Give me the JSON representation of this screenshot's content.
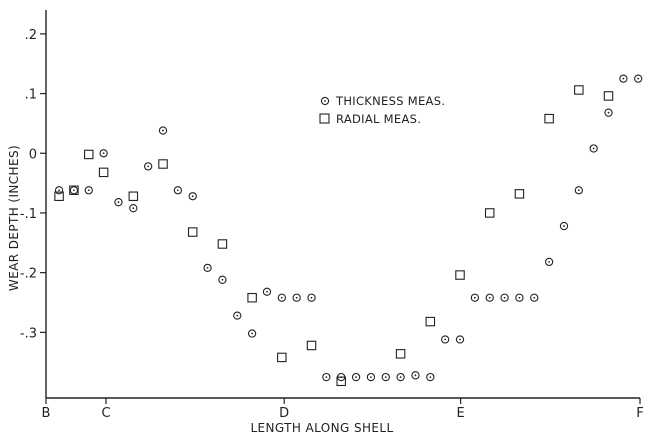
{
  "chart_data": {
    "type": "scatter",
    "xlabel": "LENGTH ALONG SHELL",
    "ylabel": "WEAR DEPTH (INCHES)",
    "xlim": [
      0,
      100
    ],
    "ylim": [
      -0.41,
      0.24
    ],
    "x_tick_labels": [
      {
        "label": "B",
        "x": 0
      },
      {
        "label": "C",
        "x": 10.1
      },
      {
        "label": "D",
        "x": 40.1
      },
      {
        "label": "E",
        "x": 69.8
      },
      {
        "label": "F",
        "x": 100
      }
    ],
    "y_tick_labels": [
      {
        "label": ".2",
        "y": 0.2
      },
      {
        "label": ".1",
        "y": 0.1
      },
      {
        "label": "0",
        "y": 0
      },
      {
        "label": "-.1",
        "y": -0.1
      },
      {
        "label": "-.2",
        "y": -0.2
      },
      {
        "label": "-.3",
        "y": -0.3
      }
    ],
    "grid": false,
    "legend_position": "top-center",
    "series": [
      {
        "name": "THICKNESS MEAS.",
        "marker": "circle",
        "points": [
          [
            2.2,
            -0.062
          ],
          [
            4.7,
            -0.062
          ],
          [
            7.2,
            -0.062
          ],
          [
            9.7,
            0.0
          ],
          [
            12.2,
            -0.082
          ],
          [
            14.7,
            -0.092
          ],
          [
            17.2,
            -0.022
          ],
          [
            19.7,
            0.038
          ],
          [
            22.2,
            -0.062
          ],
          [
            24.7,
            -0.072
          ],
          [
            27.2,
            -0.192
          ],
          [
            29.7,
            -0.212
          ],
          [
            32.2,
            -0.272
          ],
          [
            34.7,
            -0.302
          ],
          [
            37.2,
            -0.232
          ],
          [
            39.7,
            -0.242
          ],
          [
            42.2,
            -0.242
          ],
          [
            44.7,
            -0.242
          ],
          [
            47.2,
            -0.375
          ],
          [
            49.7,
            -0.375
          ],
          [
            52.2,
            -0.375
          ],
          [
            54.7,
            -0.375
          ],
          [
            57.2,
            -0.375
          ],
          [
            59.7,
            -0.375
          ],
          [
            62.2,
            -0.372
          ],
          [
            64.7,
            -0.375
          ],
          [
            67.2,
            -0.312
          ],
          [
            69.7,
            -0.312
          ],
          [
            72.2,
            -0.242
          ],
          [
            74.7,
            -0.242
          ],
          [
            77.2,
            -0.242
          ],
          [
            79.7,
            -0.242
          ],
          [
            82.2,
            -0.242
          ],
          [
            84.7,
            -0.182
          ],
          [
            87.2,
            -0.122
          ],
          [
            89.7,
            -0.062
          ],
          [
            92.2,
            0.008
          ],
          [
            94.7,
            0.068
          ],
          [
            97.2,
            0.125
          ],
          [
            99.7,
            0.125
          ]
        ]
      },
      {
        "name": "RADIAL MEAS.",
        "marker": "square",
        "points": [
          [
            2.2,
            -0.072
          ],
          [
            4.7,
            -0.062
          ],
          [
            7.2,
            -0.002
          ],
          [
            9.7,
            -0.032
          ],
          [
            14.7,
            -0.072
          ],
          [
            19.7,
            -0.018
          ],
          [
            24.7,
            -0.132
          ],
          [
            29.7,
            -0.152
          ],
          [
            34.7,
            -0.242
          ],
          [
            39.7,
            -0.342
          ],
          [
            44.7,
            -0.322
          ],
          [
            49.7,
            -0.382
          ],
          [
            59.7,
            -0.336
          ],
          [
            64.7,
            -0.282
          ],
          [
            69.7,
            -0.204
          ],
          [
            74.7,
            -0.1
          ],
          [
            79.7,
            -0.068
          ],
          [
            84.7,
            0.058
          ],
          [
            89.7,
            0.106
          ],
          [
            94.7,
            0.096
          ]
        ]
      }
    ]
  }
}
